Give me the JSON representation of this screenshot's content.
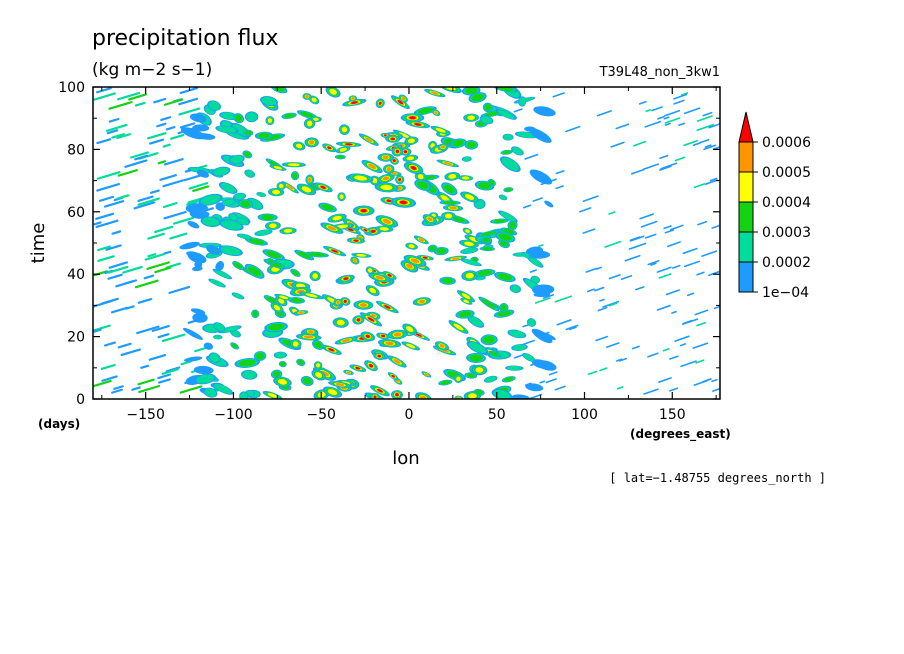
{
  "chart_data": {
    "type": "heatmap",
    "title": "precipitation flux",
    "units": "(kg m−2 s−1)",
    "run_name": "T39L48_non_3kw1",
    "xlabel": "lon",
    "ylabel": "time",
    "x_units": "(degrees_east)",
    "y_units": "(days)",
    "xlim": [
      -180,
      177.1875
    ],
    "ylim": [
      0,
      100
    ],
    "x_ticks": [
      -150,
      -100,
      -50,
      0,
      50,
      100,
      150
    ],
    "x_tick_labels": [
      "−150",
      "−100",
      "−50",
      "0",
      "50",
      "100",
      "150"
    ],
    "y_ticks": [
      0,
      20,
      40,
      60,
      80,
      100
    ],
    "y_tick_labels": [
      "0",
      "20",
      "40",
      "60",
      "80",
      "100"
    ],
    "note": "[ lat=−1.48755 degrees_north ]",
    "levels": [
      0.0001,
      0.0002,
      0.0003,
      0.0004,
      0.0005,
      0.0006
    ],
    "level_labels": [
      "1e−04",
      "0.0002",
      "0.0003",
      "0.0004",
      "0.0005",
      "0.0006"
    ],
    "level_colors": [
      "#1e9bff",
      "#00dc9a",
      "#14d214",
      "#ffff00",
      "#ff9600",
      "#ff0000"
    ],
    "background_color": "#ffffff",
    "colorbar_extend": "max",
    "colorbar_position": "right"
  }
}
